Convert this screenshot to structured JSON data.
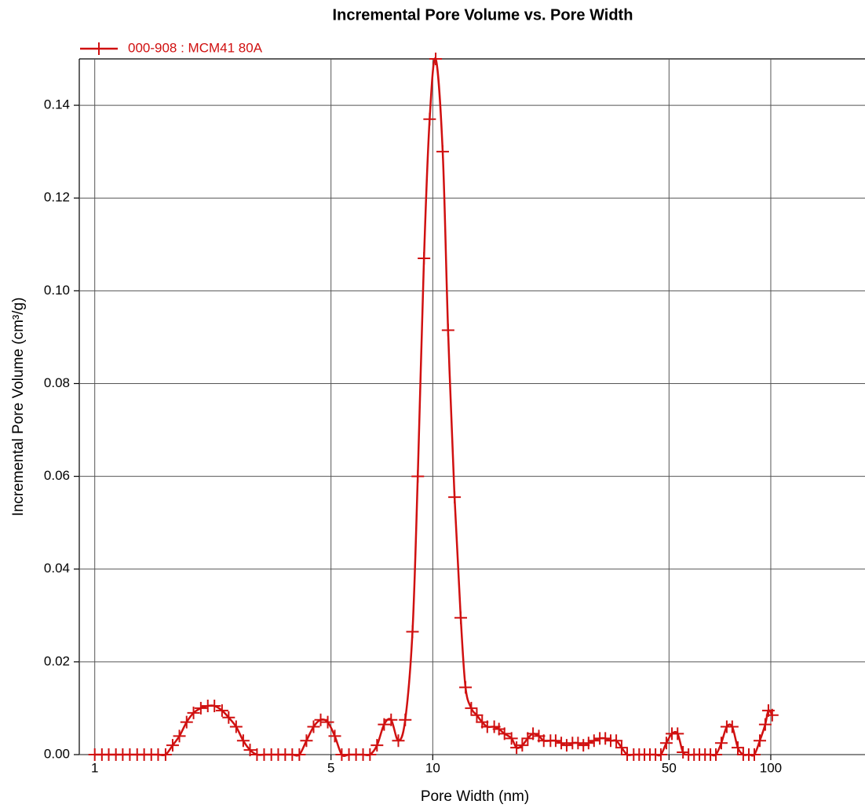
{
  "chart_data": {
    "type": "line",
    "title": "Incremental Pore Volume vs. Pore Width",
    "x_label": "Pore Width (nm)",
    "y_label": "Incremental Pore Volume (cm³/g)",
    "log_x": true,
    "grid": true,
    "legend": "top-left",
    "xlim": [
      0.9,
      190
    ],
    "ylim": [
      0,
      0.15
    ],
    "xticks": [
      1,
      5,
      10,
      50,
      100
    ],
    "yticks": [
      {
        "value": 0,
        "label": "0.00"
      },
      0.02,
      0.04,
      0.06,
      0.08,
      {
        "value": 0.1,
        "label": "0.10"
      },
      0.12,
      0.14
    ],
    "series": [
      {
        "name": "000-908 : MCM41 80A",
        "color": "#d01010",
        "x": [
          1.0,
          1.05,
          1.1,
          1.155,
          1.21,
          1.27,
          1.335,
          1.4,
          1.47,
          1.54,
          1.62,
          1.7,
          1.78,
          1.87,
          1.96,
          2.06,
          2.16,
          2.26,
          2.38,
          2.49,
          2.62,
          2.75,
          2.88,
          3.02,
          3.17,
          3.33,
          3.49,
          3.66,
          3.84,
          4.03,
          4.23,
          4.44,
          4.66,
          4.89,
          5.13,
          5.38,
          5.65,
          5.93,
          6.22,
          6.52,
          6.84,
          7.18,
          7.53,
          7.91,
          8.29,
          8.71,
          9.03,
          9.42,
          9.79,
          10.2,
          10.7,
          11.1,
          11.6,
          12.1,
          12.5,
          13.0,
          13.5,
          14.0,
          14.5,
          15.2,
          15.7,
          16.3,
          17.1,
          17.7,
          18.4,
          19.1,
          19.8,
          20.6,
          21.3,
          22.3,
          23.1,
          24.0,
          24.9,
          25.9,
          26.9,
          27.9,
          28.9,
          30.0,
          31.2,
          32.4,
          33.6,
          34.9,
          36.2,
          37.6,
          39.3,
          40.8,
          42.3,
          43.9,
          45.6,
          47.3,
          49.1,
          51.0,
          53.0,
          55.0,
          57.1,
          59.3,
          61.5,
          63.9,
          66.3,
          68.8,
          71.4,
          74.1,
          76.9,
          79.9,
          82.9,
          86.1,
          89.4,
          92.8,
          96.3,
          98.4,
          101
        ],
        "values": [
          0,
          0,
          0,
          0,
          0,
          0,
          0,
          0,
          0,
          0,
          0,
          0.002,
          0.004,
          0.007,
          0.009,
          0.01,
          0.0105,
          0.0105,
          0.0095,
          0.008,
          0.006,
          0.003,
          0.001,
          0,
          0,
          0,
          0,
          0,
          0,
          0,
          0.003,
          0.006,
          0.0075,
          0.007,
          0.004,
          0,
          0,
          0,
          0,
          0,
          0.002,
          0.0065,
          0.0075,
          0.003,
          0.0075,
          0.0265,
          0.06,
          0.107,
          0.137,
          0.15,
          0.13,
          0.0915,
          0.0555,
          0.0295,
          0.0145,
          0.01,
          0.0085,
          0.007,
          0.006,
          0.006,
          0.0055,
          0.0045,
          0.0035,
          0.0015,
          0.002,
          0.0035,
          0.0045,
          0.004,
          0.003,
          0.003,
          0.003,
          0.0025,
          0.002,
          0.0025,
          0.0025,
          0.002,
          0.0025,
          0.003,
          0.0035,
          0.0035,
          0.003,
          0.003,
          0.0015,
          0,
          0,
          0,
          0,
          0,
          0,
          0,
          0.0025,
          0.0045,
          0.0045,
          0.0005,
          0,
          0,
          0,
          0,
          0,
          0,
          0.0025,
          0.006,
          0.006,
          0.0015,
          0,
          0,
          0,
          0.003,
          0.0065,
          0.0095,
          0.0085
        ]
      }
    ]
  }
}
